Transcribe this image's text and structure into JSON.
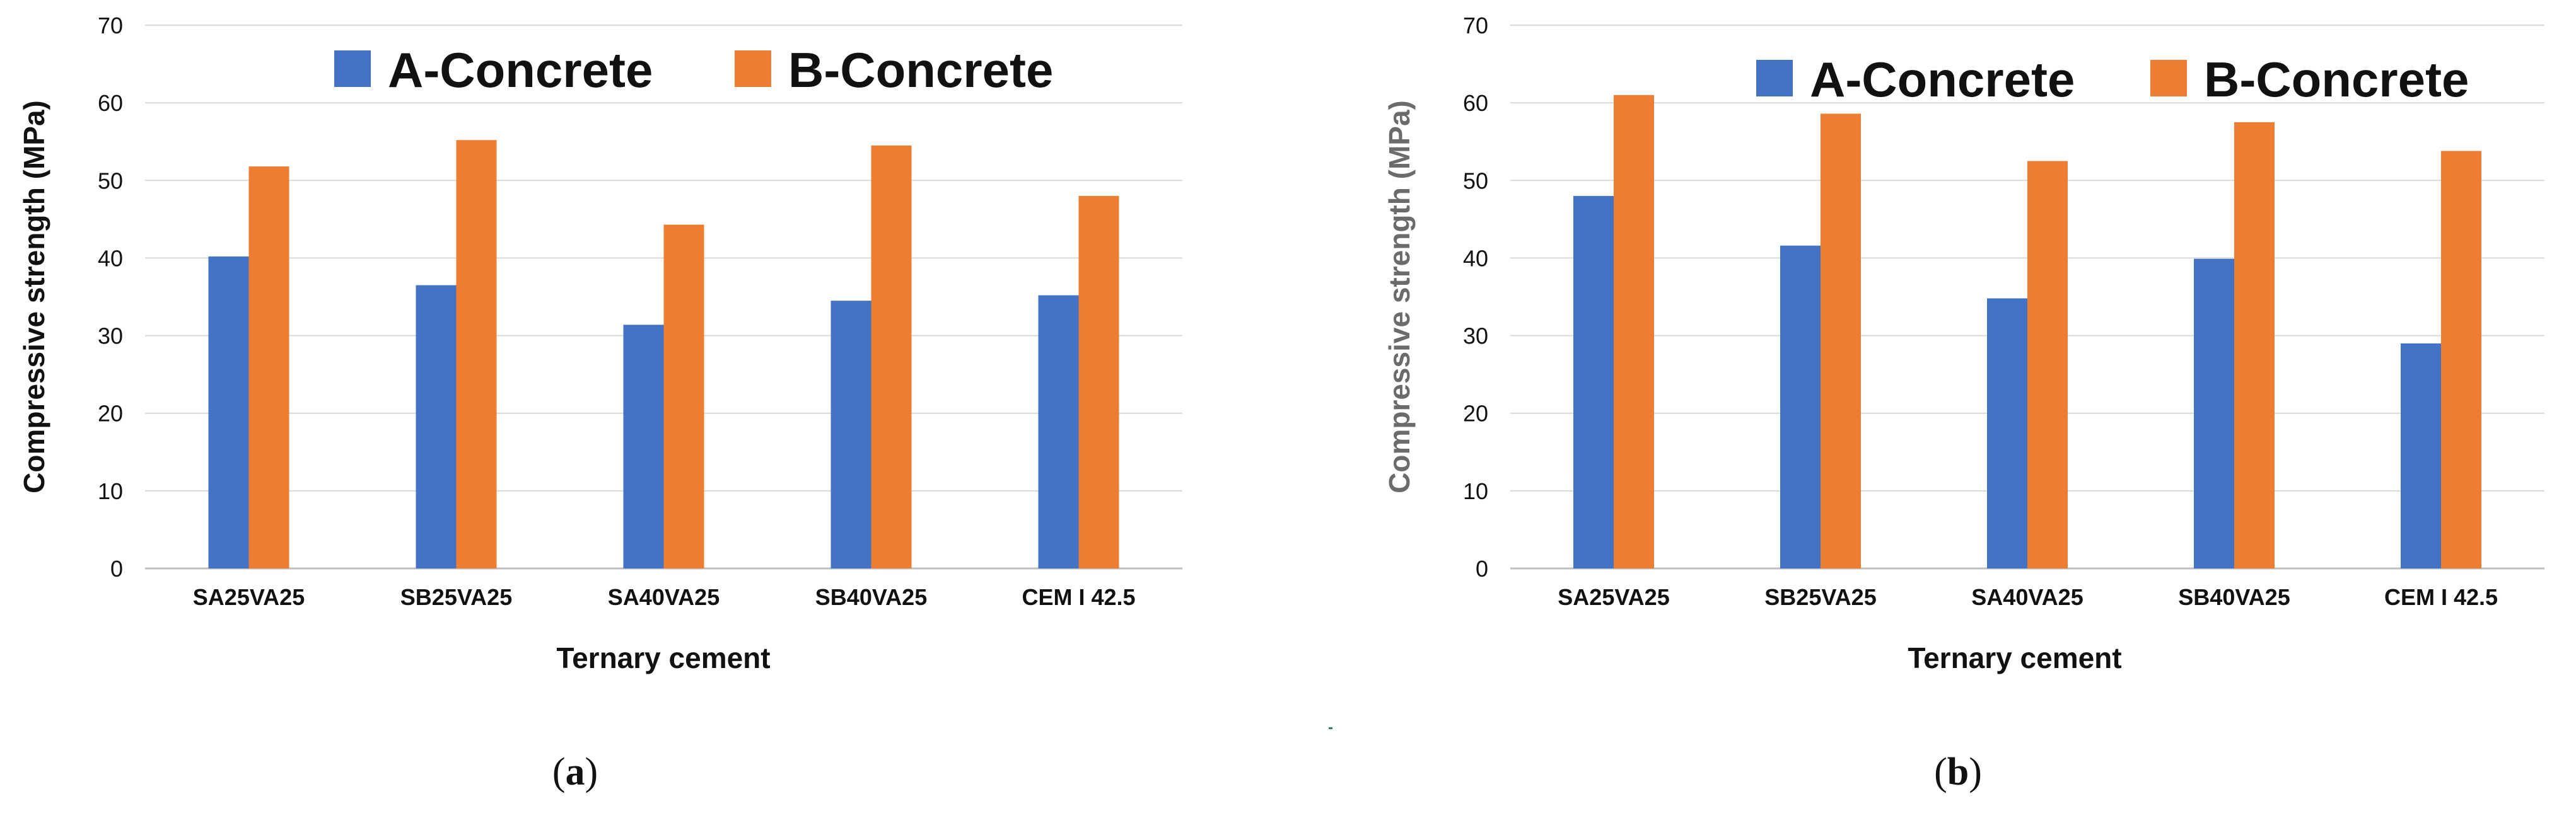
{
  "colors": {
    "series_a": "#4472C4",
    "series_b": "#ED7D31",
    "grid": "#D9D9D9"
  },
  "chart_data": [
    {
      "type": "bar",
      "panel_label": "a",
      "categories": [
        "SA25VA25",
        "SB25VA25",
        "SA40VA25",
        "SB40VA25",
        "CEM I 42.5"
      ],
      "series": [
        {
          "name": "A-Concrete",
          "values": [
            40.2,
            36.5,
            31.4,
            34.5,
            35.2
          ]
        },
        {
          "name": "B-Concrete",
          "values": [
            51.8,
            55.2,
            44.3,
            54.5,
            48.0
          ]
        }
      ],
      "xlabel": "Ternary cement",
      "ylabel": "Compressive strength (MPa)",
      "ylim": [
        0,
        70
      ],
      "yticks": [
        "0",
        "10",
        "20",
        "30",
        "40",
        "50",
        "60",
        "70"
      ],
      "grid": true,
      "legend": "top"
    },
    {
      "type": "bar",
      "panel_label": "b",
      "categories": [
        "SA25VA25",
        "SB25VA25",
        "SA40VA25",
        "SB40VA25",
        "CEM I 42.5"
      ],
      "series": [
        {
          "name": "A-Concrete",
          "values": [
            48.0,
            41.6,
            34.8,
            39.9,
            29.0
          ]
        },
        {
          "name": "B-Concrete",
          "values": [
            61.0,
            58.6,
            52.5,
            57.5,
            53.8
          ]
        }
      ],
      "xlabel": "Ternary cement",
      "ylabel": "Compressive strength (MPa)",
      "ylim": [
        0,
        70
      ],
      "yticks": [
        "0",
        "10",
        "20",
        "30",
        "40",
        "50",
        "60",
        "70"
      ],
      "grid": true,
      "legend": "top"
    }
  ]
}
